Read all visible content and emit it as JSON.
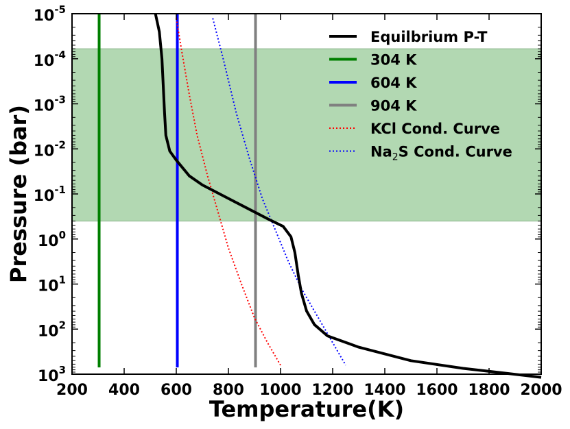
{
  "chart_data": {
    "type": "line",
    "xlabel": "Temperature(K)",
    "ylabel": "Pressure (bar)",
    "xlim": [
      200,
      2000
    ],
    "ylim_log10": [
      -5,
      3
    ],
    "y_inverted": true,
    "y_scale": "log",
    "x_ticks": [
      "200",
      "400",
      "600",
      "800",
      "1000",
      "1200",
      "1400",
      "1600",
      "1800",
      "2000"
    ],
    "x_tick_values": [
      200,
      400,
      600,
      800,
      1000,
      1200,
      1400,
      1600,
      1800,
      2000
    ],
    "y_ticks": [
      {
        "base": "10",
        "exp": "-5",
        "value_log10": -5
      },
      {
        "base": "10",
        "exp": "-4",
        "value_log10": -4
      },
      {
        "base": "10",
        "exp": "-3",
        "value_log10": -3
      },
      {
        "base": "10",
        "exp": "-2",
        "value_log10": -2
      },
      {
        "base": "10",
        "exp": "-1",
        "value_log10": -1
      },
      {
        "base": "10",
        "exp": "0",
        "value_log10": 0
      },
      {
        "base": "10",
        "exp": "1",
        "value_log10": 1
      },
      {
        "base": "10",
        "exp": "2",
        "value_log10": 2
      },
      {
        "base": "10",
        "exp": "3",
        "value_log10": 3
      }
    ],
    "shaded_band": {
      "pressure_top_bar": 6e-05,
      "pressure_bottom_bar": 0.4,
      "color": "#b2d8b2"
    },
    "series": [
      {
        "name": "Equilbrium P-T",
        "kind": "curve",
        "color": "#000000",
        "style": "solid",
        "points": [
          [
            520,
            -5
          ],
          [
            535,
            -4.6
          ],
          [
            545,
            -4
          ],
          [
            550,
            -3.4
          ],
          [
            555,
            -2.8
          ],
          [
            560,
            -2.3
          ],
          [
            575,
            -1.95
          ],
          [
            600,
            -1.75
          ],
          [
            650,
            -1.4
          ],
          [
            700,
            -1.2
          ],
          [
            800,
            -0.9
          ],
          [
            900,
            -0.6
          ],
          [
            960,
            -0.42
          ],
          [
            1010,
            -0.28
          ],
          [
            1040,
            -0.05
          ],
          [
            1055,
            0.3
          ],
          [
            1068,
            0.8
          ],
          [
            1080,
            1.2
          ],
          [
            1100,
            1.6
          ],
          [
            1130,
            1.9
          ],
          [
            1180,
            2.15
          ],
          [
            1300,
            2.4
          ],
          [
            1500,
            2.7
          ],
          [
            1700,
            2.87
          ],
          [
            1850,
            2.97
          ],
          [
            2000,
            3.07
          ]
        ]
      },
      {
        "name": "304 K",
        "kind": "vline",
        "x": 304,
        "color": "#007f00",
        "style": "solid",
        "y_range_log10": [
          -5,
          2.85
        ]
      },
      {
        "name": "604 K",
        "kind": "vline",
        "x": 604,
        "color": "#0000ff",
        "style": "solid",
        "y_range_log10": [
          -5,
          2.85
        ]
      },
      {
        "name": "904 K",
        "kind": "vline",
        "x": 904,
        "color": "#808080",
        "style": "solid",
        "y_range_log10": [
          -5,
          2.85
        ]
      },
      {
        "name": "KCl Cond. Curve",
        "kind": "curve",
        "color": "#ff0000",
        "style": "dotted",
        "points": [
          [
            600,
            -4.9
          ],
          [
            620,
            -4.2
          ],
          [
            650,
            -3.2
          ],
          [
            680,
            -2.3
          ],
          [
            720,
            -1.4
          ],
          [
            760,
            -0.6
          ],
          [
            800,
            0.2
          ],
          [
            850,
            1.0
          ],
          [
            900,
            1.75
          ],
          [
            950,
            2.3
          ],
          [
            1000,
            2.8
          ]
        ]
      },
      {
        "name": "Na₂S Cond. Curve",
        "kind": "curve",
        "color": "#0000ff",
        "style": "dotted",
        "points": [
          [
            740,
            -4.9
          ],
          [
            780,
            -4.0
          ],
          [
            830,
            -2.8
          ],
          [
            880,
            -1.8
          ],
          [
            930,
            -0.9
          ],
          [
            980,
            -0.2
          ],
          [
            1030,
            0.5
          ],
          [
            1080,
            1.1
          ],
          [
            1140,
            1.7
          ],
          [
            1200,
            2.3
          ],
          [
            1250,
            2.8
          ]
        ]
      }
    ],
    "legend": {
      "placement": "top-right",
      "entries": [
        {
          "label": "Equilbrium P-T",
          "color": "#000000",
          "style": "solid"
        },
        {
          "label": "304 K",
          "color": "#007f00",
          "style": "solid"
        },
        {
          "label": "604 K",
          "color": "#0000ff",
          "style": "solid"
        },
        {
          "label": "904 K",
          "color": "#808080",
          "style": "solid"
        },
        {
          "label": "KCl Cond. Curve",
          "color": "#ff0000",
          "style": "dotted"
        },
        {
          "label_prefix": "Na",
          "label_sub": "2",
          "label_suffix": "S Cond. Curve",
          "color": "#0000ff",
          "style": "dotted"
        }
      ]
    }
  }
}
